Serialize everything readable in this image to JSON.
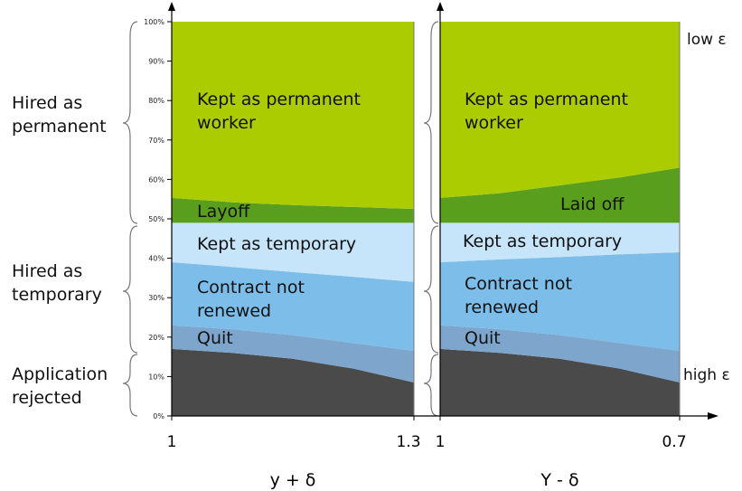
{
  "chart_data": [
    {
      "type": "area",
      "stacked": true,
      "xlabel": "y + δ",
      "x": [
        1,
        1.075,
        1.15,
        1.225,
        1.3
      ],
      "xlim": [
        1,
        1.3
      ],
      "xticks": [
        1,
        1.3
      ],
      "ylim": [
        0,
        100
      ],
      "yticks": [
        {
          "value": 0,
          "label": "0%"
        },
        {
          "value": 10,
          "label": "10%"
        },
        {
          "value": 20,
          "label": "20%"
        },
        {
          "value": 30,
          "label": "30%"
        },
        {
          "value": 40,
          "label": "40%"
        },
        {
          "value": 50,
          "label": "50%"
        },
        {
          "value": 60,
          "label": "60%"
        },
        {
          "value": 70,
          "label": "70%"
        },
        {
          "value": 80,
          "label": "80%"
        },
        {
          "value": 90,
          "label": "90%"
        },
        {
          "value": 100,
          "label": "100%"
        }
      ],
      "groups": [
        "Hired as permanent",
        "Hired as temporary",
        "Application rejected"
      ],
      "series": [
        {
          "color": "#4a4a4a",
          "values": [
            17,
            16,
            14.5,
            12,
            8.5
          ]
        },
        {
          "name": "Quit",
          "color": "#7ea6cc",
          "values": [
            6,
            6,
            6,
            6.5,
            8
          ]
        },
        {
          "name": "Contract not renewed",
          "color": "#7dbde9",
          "values": [
            16,
            15.8,
            16,
            16.8,
            17.5
          ]
        },
        {
          "name": "Kept as temporary",
          "color": "#c6e4fa",
          "values": [
            10,
            11.2,
            12.5,
            13.7,
            15
          ]
        },
        {
          "name": "Layoff",
          "color": "#5a9e1e",
          "values": [
            6.3,
            5.2,
            4.5,
            4,
            3.5
          ]
        },
        {
          "name": "Kept as permanent worker",
          "color": "#aacc00",
          "values": [
            44.7,
            45.8,
            46.5,
            47,
            47.5
          ]
        }
      ]
    },
    {
      "type": "area",
      "stacked": true,
      "xlabel": "Y - δ",
      "x": [
        1,
        0.925,
        0.85,
        0.775,
        0.7
      ],
      "xlim": [
        1,
        0.7
      ],
      "xticks": [
        1,
        0.7
      ],
      "ylim": [
        0,
        100
      ],
      "annotations": [
        "low ε",
        "high ε"
      ],
      "series": [
        {
          "color": "#4a4a4a",
          "values": [
            17,
            16,
            14.5,
            12,
            8.5
          ]
        },
        {
          "name": "Quit",
          "color": "#7ea6cc",
          "values": [
            6,
            6,
            6,
            6.5,
            8
          ]
        },
        {
          "name": "Contract not renewed",
          "color": "#7dbde9",
          "values": [
            16,
            17.7,
            19.8,
            22.5,
            25
          ]
        },
        {
          "name": "Kept as temporary",
          "color": "#c6e4fa",
          "values": [
            10,
            9.3,
            8.7,
            8,
            7.5
          ]
        },
        {
          "name": "Laid off",
          "color": "#5a9e1e",
          "values": [
            6.3,
            7.5,
            9.5,
            11.5,
            14
          ]
        },
        {
          "name": "Kept as permanent worker",
          "color": "#aacc00",
          "values": [
            44.7,
            43.5,
            41.5,
            39.5,
            37
          ]
        }
      ]
    }
  ]
}
